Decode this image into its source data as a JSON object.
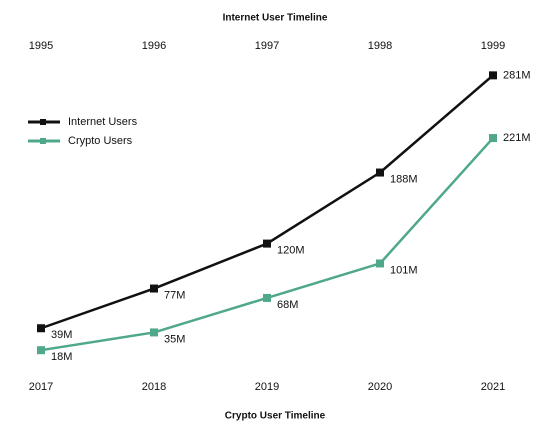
{
  "chart_data": {
    "type": "line",
    "top_axis_label": "Internet User Timeline",
    "top_categories": [
      "1995",
      "1996",
      "1997",
      "1998",
      "1999"
    ],
    "bottom_axis_label": "Crypto User Timeline",
    "categories": [
      "2017",
      "2018",
      "2019",
      "2020",
      "2021"
    ],
    "legend": "left",
    "series": [
      {
        "name": "Internet Users",
        "color": "#111111",
        "axis": "top",
        "values": [
          39,
          77,
          120,
          188,
          281
        ],
        "value_labels": [
          "39M",
          "77M",
          "120M",
          "188M",
          "281M"
        ]
      },
      {
        "name": "Crypto Users",
        "color": "#4fa88b",
        "axis": "bottom",
        "values": [
          18,
          35,
          68,
          101,
          221
        ],
        "value_labels": [
          "18M",
          "35M",
          "68M",
          "101M",
          "221M"
        ]
      }
    ]
  }
}
